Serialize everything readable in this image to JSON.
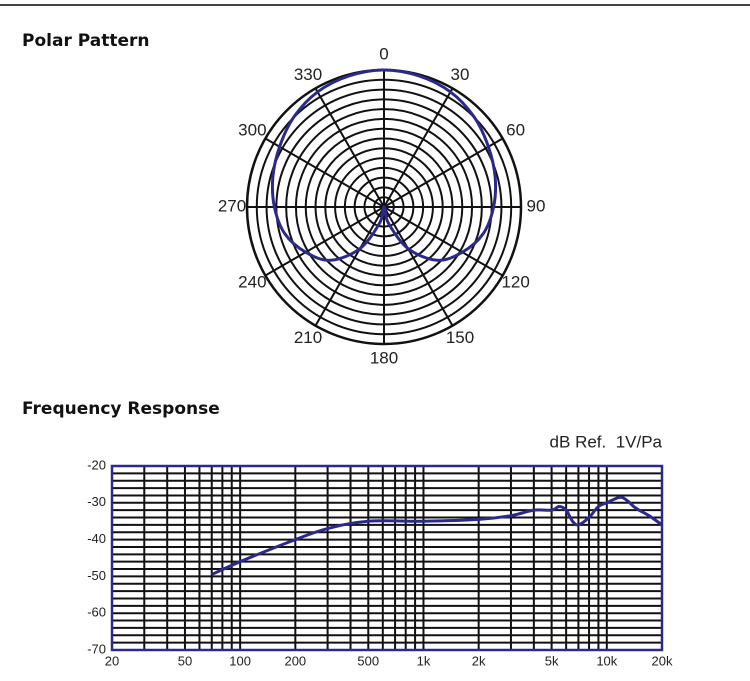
{
  "chart_data": [
    {
      "type": "polar",
      "title": "Polar Pattern",
      "x": [
        0,
        15,
        30,
        45,
        60,
        75,
        90,
        105,
        120,
        135,
        150,
        165,
        180,
        195,
        210,
        225,
        240,
        255,
        270,
        285,
        300,
        315,
        330,
        345
      ],
      "values": [
        1,
        0.99,
        0.97,
        0.93,
        0.88,
        0.84,
        0.8,
        0.75,
        0.66,
        0.55,
        0.35,
        0.12,
        0,
        0.12,
        0.35,
        0.55,
        0.66,
        0.75,
        0.8,
        0.84,
        0.88,
        0.93,
        0.97,
        0.99
      ],
      "color": "#2b2a8c",
      "rlim": [
        0,
        1
      ],
      "xticks": [
        0,
        30,
        60,
        90,
        120,
        150,
        180,
        210,
        240,
        270,
        300,
        330
      ],
      "grid": true
    },
    {
      "type": "line",
      "title": "Frequency Response",
      "annotation": "dB Ref.  1V/Pa",
      "x": [
        70,
        100,
        200,
        300,
        500,
        1000,
        2000,
        3000,
        4000,
        5000,
        5500,
        6000,
        6500,
        7000,
        8000,
        9000,
        10000,
        11000,
        12000,
        13000,
        14000,
        15000,
        17000,
        20000
      ],
      "values": [
        -49.5,
        -46,
        -40,
        -37,
        -35,
        -35,
        -34.5,
        -33.5,
        -32,
        -32,
        -31,
        -32,
        -35,
        -36,
        -34,
        -31,
        -30,
        -29,
        -28.5,
        -29.5,
        -31,
        -32,
        -33.5,
        -36
      ],
      "color": "#2b2a8c",
      "xscale": "log",
      "xlim": [
        20,
        20000
      ],
      "xticks": [
        20,
        50,
        100,
        200,
        500,
        {
          "value": 1000,
          "label": "1k"
        },
        {
          "value": 2000,
          "label": "2k"
        },
        {
          "value": 5000,
          "label": "5k"
        },
        {
          "value": 10000,
          "label": "10k"
        },
        {
          "value": 20000,
          "label": "20k"
        }
      ],
      "x_minor_ticks": [
        30,
        40,
        60,
        70,
        80,
        90,
        300,
        400,
        600,
        700,
        800,
        900,
        3000,
        4000,
        6000,
        7000,
        8000,
        9000
      ],
      "ylim": [
        -70,
        -20
      ],
      "yticks": [
        -20,
        -30,
        -40,
        -50,
        -60,
        -70
      ],
      "y_minor_ticks": [
        -22,
        -24,
        -26,
        -28,
        -32,
        -34,
        -36,
        -38,
        -42,
        -44,
        -46,
        -48,
        -52,
        -54,
        -56,
        -58,
        -62,
        -64,
        -66,
        -68
      ],
      "grid": true
    }
  ]
}
